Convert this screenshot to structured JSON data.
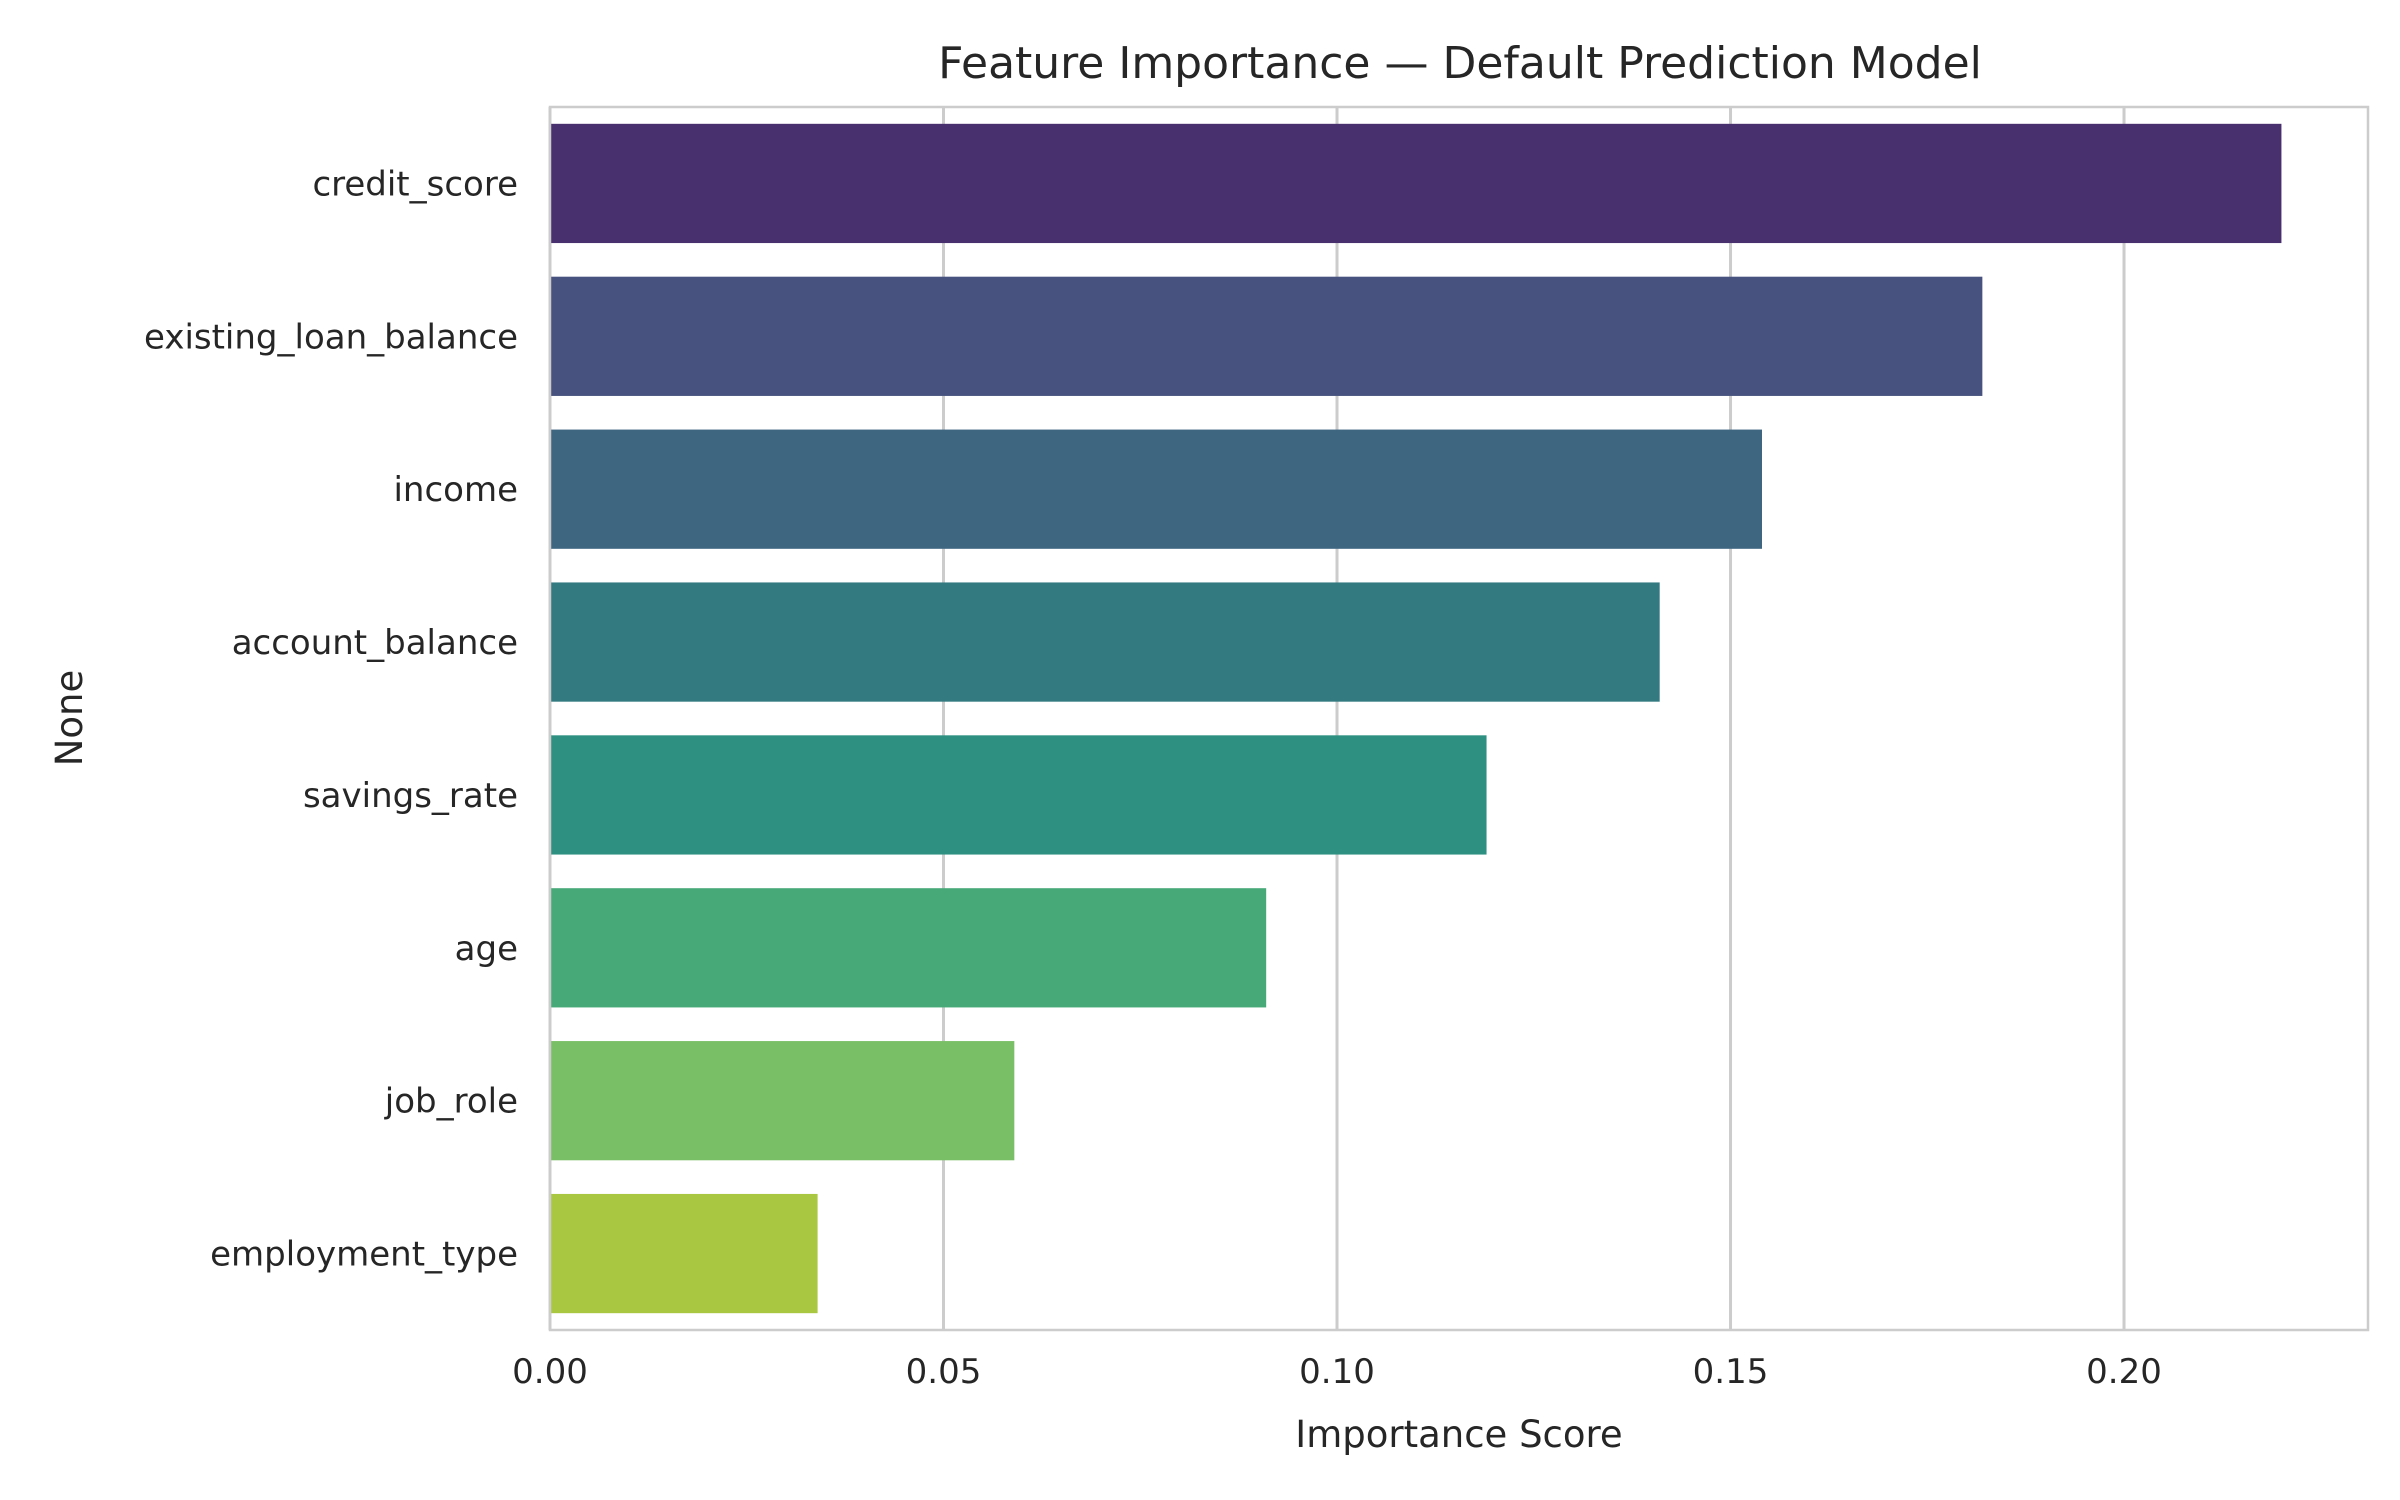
{
  "chart_data": {
    "type": "bar",
    "orientation": "horizontal",
    "title": "Feature Importance — Default Prediction Model",
    "xlabel": "Importance Score",
    "ylabel": "None",
    "categories": [
      "credit_score",
      "existing_loan_balance",
      "income",
      "account_balance",
      "savings_rate",
      "age",
      "job_role",
      "employment_type"
    ],
    "values": [
      0.22,
      0.182,
      0.154,
      0.141,
      0.119,
      0.091,
      0.059,
      0.034
    ],
    "colors": [
      "#482f6e",
      "#47527e",
      "#3e6681",
      "#337a80",
      "#2e9080",
      "#47a978",
      "#79bf66",
      "#a9c741"
    ],
    "xlim": [
      0,
      0.231
    ],
    "xticks": [
      "0.00",
      "0.05",
      "0.10",
      "0.15",
      "0.20"
    ],
    "xtick_values": [
      0,
      0.05,
      0.1,
      0.15,
      0.2
    ],
    "grid": "vertical",
    "legend": "none"
  }
}
